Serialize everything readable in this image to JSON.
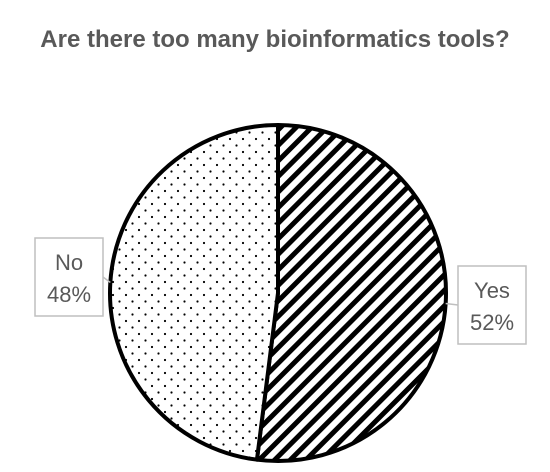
{
  "chart_data": {
    "type": "pie",
    "title": "Are there too many bioinformatics tools?",
    "title_color": "#595959",
    "label_color": "#595959",
    "label_box_color": "#bfbfbf",
    "slice_stroke_color": "#000000",
    "legend": "none",
    "slices": [
      {
        "label": "Yes",
        "value": 52,
        "value_text": "52%",
        "pattern": "diagonal-hatch"
      },
      {
        "label": "No",
        "value": 48,
        "value_text": "48%",
        "pattern": "dots"
      }
    ]
  }
}
